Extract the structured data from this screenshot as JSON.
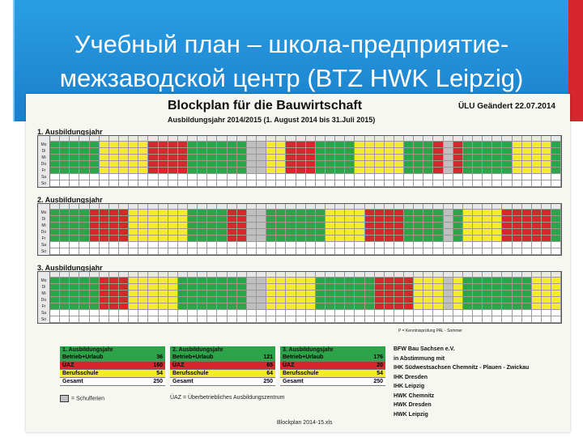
{
  "slide": {
    "title_line1": "Учебный план – школа-предприятие-",
    "title_line2": "межзаводской центр (BTZ HWK Leipzig)"
  },
  "document": {
    "title": "Blockplan für die Bauwirtschaft",
    "subtitle": "Ausbildungsjahr 2014/2015 (1. August 2014 bis 31.Juli 2015)",
    "updated": "ÜLU Geändert 22.07.2014",
    "year_labels": [
      "1. Ausbildungsjahr",
      "2. Ausbildungsjahr",
      "3. Ausbildungsjahr"
    ],
    "day_labels": [
      "Mo",
      "Di",
      "Mi",
      "Do",
      "Fr",
      "Sa",
      "So"
    ],
    "p_note": "P = Kenntnisprüfung   PAL - Sommer",
    "legends": [
      {
        "header": "1. Ausbildungsjahr",
        "rows": [
          {
            "label": "Betrieb+Urlaub",
            "value": "36"
          },
          {
            "label": "ÜAZ",
            "value": "160"
          },
          {
            "label": "Berufsschule",
            "value": "54"
          },
          {
            "label": "Gesamt",
            "value": "250"
          }
        ]
      },
      {
        "header": "2. Ausbildungsjahr",
        "rows": [
          {
            "label": "Betrieb+Urlaub",
            "value": "121"
          },
          {
            "label": "ÜAZ",
            "value": "65"
          },
          {
            "label": "Berufsschule",
            "value": "64"
          },
          {
            "label": "Gesamt",
            "value": "250"
          }
        ]
      },
      {
        "header": "3. Ausbildungsjahr",
        "rows": [
          {
            "label": "Betrieb+Urlaub",
            "value": "176"
          },
          {
            "label": "ÜAZ",
            "value": "20"
          },
          {
            "label": "Berufsschule",
            "value": "54"
          },
          {
            "label": "Gesamt",
            "value": "250"
          }
        ]
      }
    ],
    "organization": [
      "BFW Bau Sachsen e.V.",
      "in Abstimmung mit",
      "IHK Südwestsachsen Chemnitz - Plauen - Zwickau",
      "IHK Dresden",
      "IHK Leipzig",
      "HWK Chemnitz",
      "HWK Dresden",
      "HWK Leipzig"
    ],
    "note_schulferien": "= Schulferien",
    "note_uaz": "ÜAZ = Überbetriebliches Ausbildungszentrum",
    "footer": "Blockplan 2014-15.xls",
    "colors": {
      "green": "#2ea44a",
      "yellow": "#f3ec2b",
      "red": "#d7262e"
    }
  }
}
